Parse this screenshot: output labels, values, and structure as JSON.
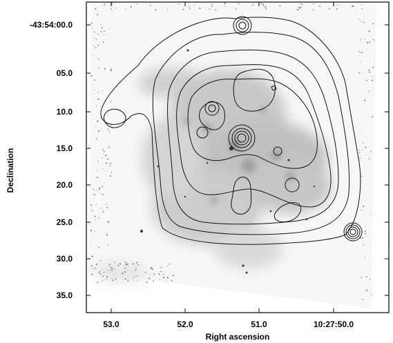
{
  "chart_data": {
    "type": "image-with-contours",
    "title": "",
    "xlabel": "Right ascension",
    "ylabel": "Declination",
    "x_ticks": [
      {
        "label": "53.0",
        "value": "10:27:53.0"
      },
      {
        "label": "52.0",
        "value": "10:27:52.0"
      },
      {
        "label": "51.0",
        "value": "10:27:51.0"
      },
      {
        "label": "10:27:50.0",
        "value": "10:27:50.0"
      }
    ],
    "y_ticks": [
      {
        "label": "-43:54:00.0",
        "value": "-43:54:00.0"
      },
      {
        "label": "05.0",
        "value": "-43:54:05.0"
      },
      {
        "label": "10.0",
        "value": "-43:54:10.0"
      },
      {
        "label": "15.0",
        "value": "-43:54:15.0"
      },
      {
        "label": "20.0",
        "value": "-43:54:20.0"
      },
      {
        "label": "25.0",
        "value": "-43:54:25.0"
      },
      {
        "label": "30.0",
        "value": "-43:54:30.0"
      },
      {
        "label": "35.0",
        "value": "-43:54:35.0"
      }
    ],
    "grid": false,
    "colors": {
      "image": "#808080",
      "contours": "#111111",
      "background": "#ffffff"
    }
  }
}
